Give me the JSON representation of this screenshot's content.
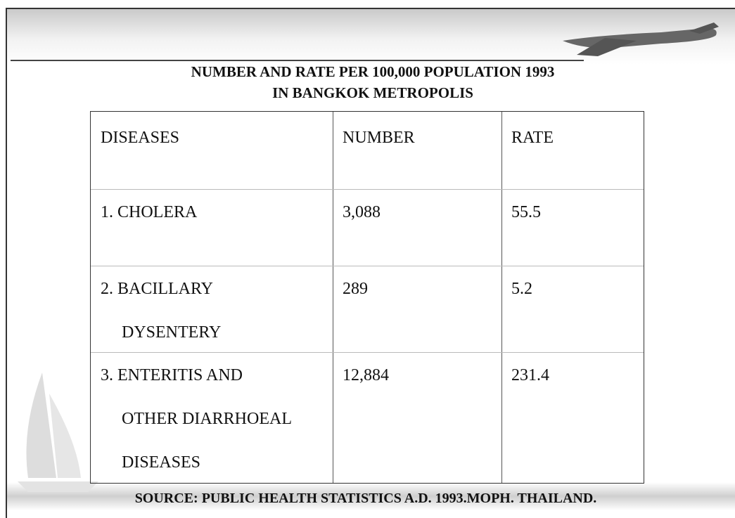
{
  "header": {
    "title_lines": [
      "NUMBER AND RATE PER 100,000 POPULATION 1993",
      "IN BANGKOK METROPOLIS"
    ]
  },
  "table": {
    "columns": [
      "DISEASES",
      "NUMBER",
      "RATE"
    ],
    "rows": [
      [
        [
          "1. CHOLERA"
        ],
        "3,088",
        "55.5"
      ],
      [
        [
          "2. BACILLARY",
          "DYSENTERY"
        ],
        "289",
        "5.2"
      ],
      [
        [
          "3. ENTERITIS AND",
          "OTHER DIARRHOEAL",
          "DISEASES"
        ],
        "12,884",
        "231.4"
      ]
    ]
  },
  "footer": {
    "source": "SOURCE: PUBLIC HEALTH STATISTICS A.D. 1993.MOPH. THAILAND."
  }
}
